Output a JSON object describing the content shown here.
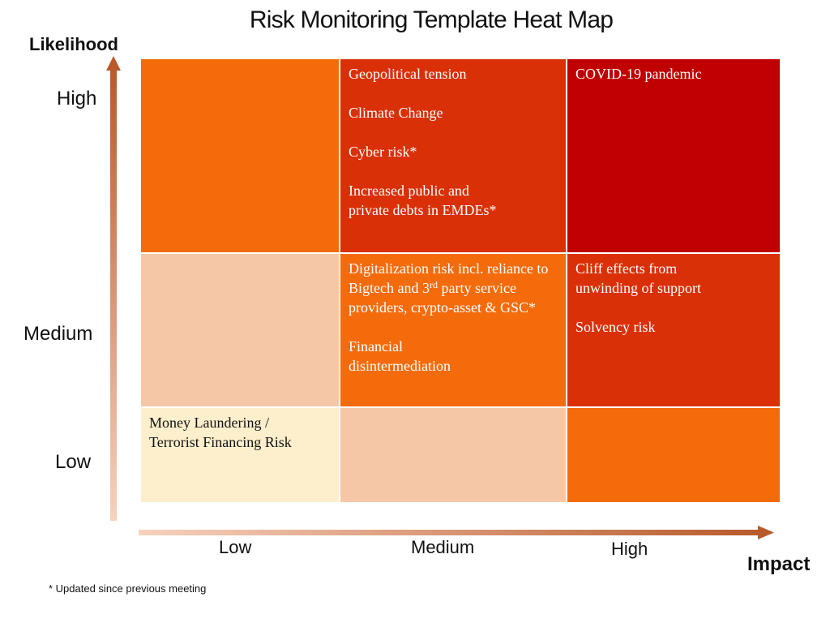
{
  "title": "Risk Monitoring Template Heat Map",
  "axes": {
    "y_title": "Likelihood",
    "x_title": "Impact",
    "y_levels": [
      "High",
      "Medium",
      "Low"
    ],
    "x_levels": [
      "Low",
      "Medium",
      "High"
    ]
  },
  "colors": {
    "dark_red": "#c00000",
    "red_orange": "#d93008",
    "orange": "#f46b0c",
    "peach": "#f6c7a6",
    "cream": "#fdefcc"
  },
  "cells": {
    "high_low": {
      "items": []
    },
    "high_medium": {
      "items": [
        "Geopolitical tension",
        "Climate Change",
        "Cyber risk*",
        "Increased public and  private debts in EMDEs*"
      ]
    },
    "high_high": {
      "items": [
        "COVID-19 pandemic"
      ]
    },
    "medium_low": {
      "items": []
    },
    "medium_medium": {
      "item1_before_sup": "Digitalization risk incl. reliance to Bigtech and 3",
      "item1_sup": "rd",
      "item1_after_sup": " party service providers, crypto-asset & GSC*",
      "item2": "Financial disintermediation"
    },
    "medium_high": {
      "items": [
        "Cliff effects from unwinding of support",
        "Solvency risk"
      ]
    },
    "low_low": {
      "items": [
        "Money Laundering / Terrorist Financing Risk"
      ]
    },
    "low_medium": {
      "items": []
    },
    "low_high": {
      "items": []
    }
  },
  "footnote": "* Updated since previous meeting"
}
